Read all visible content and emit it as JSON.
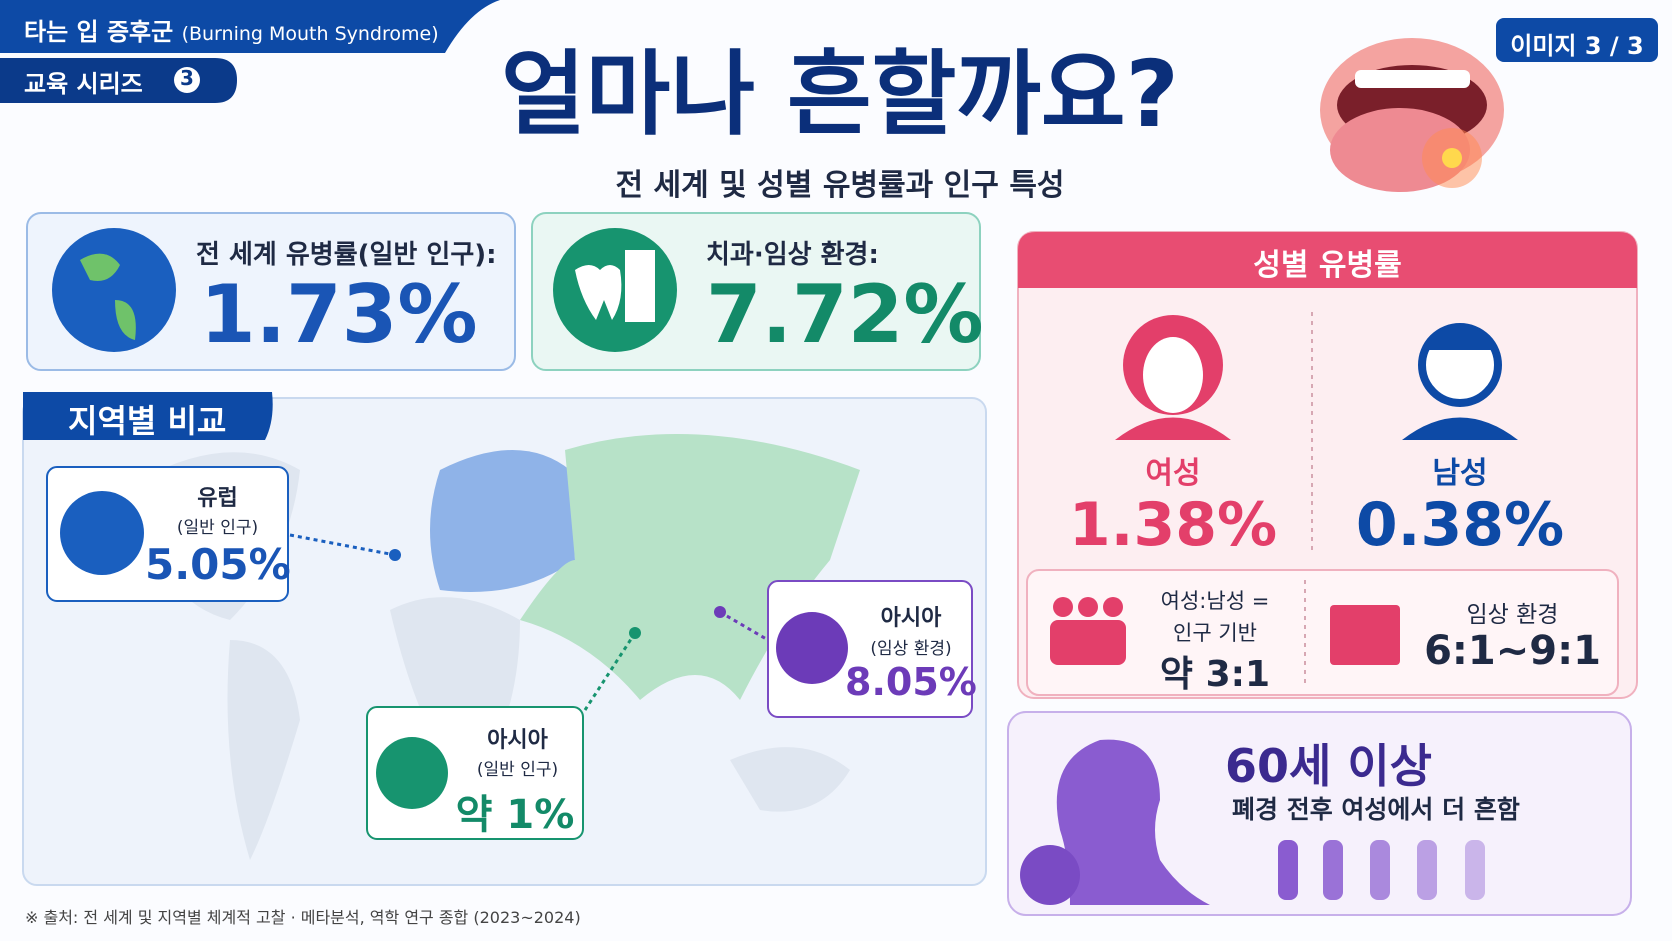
{
  "header": {
    "tag_ko": "타는 입 증후군",
    "tag_en": "(Burning Mouth Syndrome)",
    "series": "교육 시리즈",
    "series_no": "3",
    "page": "이미지 3 / 3",
    "title": "얼마나 흔할까요?",
    "subtitle": "전 세계 및 성별 유병률과 인구 특성"
  },
  "stats": [
    {
      "label": "전 세계 유병률(일반 인구):",
      "value": "1.73%"
    },
    {
      "label": "치과·임상 환경:",
      "value": "7.72%"
    }
  ],
  "regional": {
    "title": "지역별 비교",
    "items": [
      {
        "name": "유럽",
        "note": "(일반 인구)",
        "value": "5.05%"
      },
      {
        "name": "아시아",
        "note": "(임상 환경)",
        "value": "8.05%"
      },
      {
        "name": "아시아",
        "note": "(일반 인구)",
        "value": "약 1%"
      }
    ]
  },
  "gender": {
    "title": "성별 유병률",
    "female": {
      "label": "여성",
      "value": "1.38%"
    },
    "male": {
      "label": "남성",
      "value": "0.38%"
    },
    "ratio": {
      "line1": "여성:남성 =",
      "line2": "인구 기반",
      "value": "약 3:1"
    },
    "clinic": {
      "label": "임상 환경",
      "value": "6:1~9:1"
    }
  },
  "age": {
    "headline": "60세 이상",
    "text": "폐경 전후 여성에서 더 흔함"
  },
  "footer": {
    "source": "※ 출처: 전 세계 및 지역별 체계적 고찰 · 메타분석, 역학 연구 종합 (2023~2024)"
  }
}
